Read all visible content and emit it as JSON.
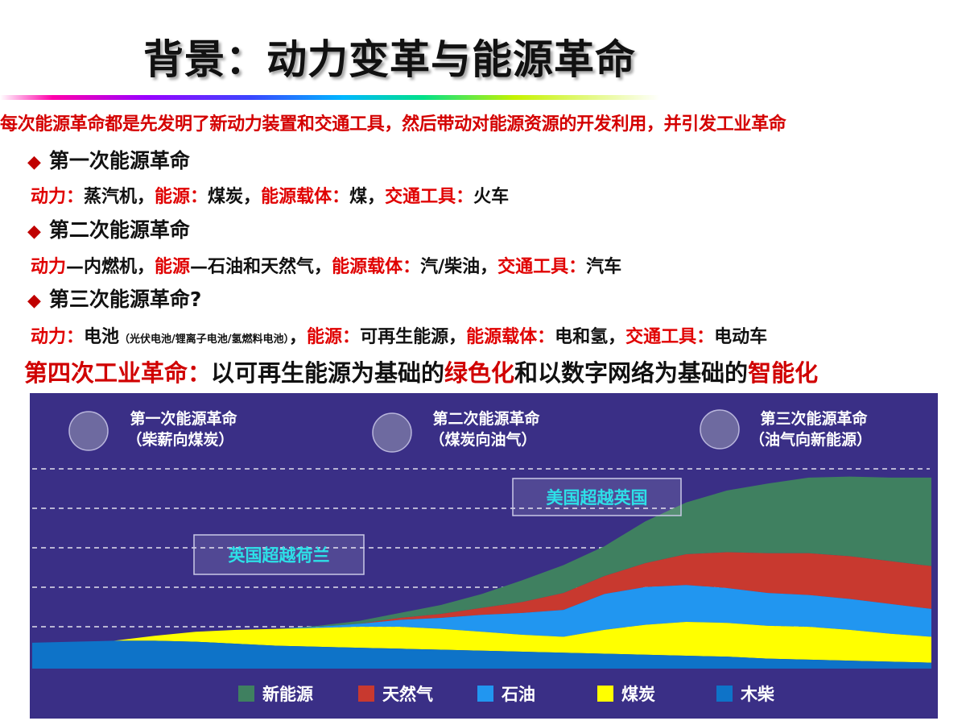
{
  "title": "背景：动力变革与能源革命",
  "intro": "每次能源革命都是先发明了新动力装置和交通工具，然后带动对能源资源的开发利用，并引发工业革命",
  "revolutions": [
    {
      "heading": "第一次能源革命",
      "detail": [
        {
          "text": "动力：",
          "red": true
        },
        {
          "text": "蒸汽机，",
          "red": false
        },
        {
          "text": "能源：",
          "red": true
        },
        {
          "text": "煤炭，",
          "red": false
        },
        {
          "text": "能源载体：",
          "red": true
        },
        {
          "text": "煤，",
          "red": false
        },
        {
          "text": "交通工具：",
          "red": true
        },
        {
          "text": "火车",
          "red": false
        }
      ]
    },
    {
      "heading": "第二次能源革命",
      "detail": [
        {
          "text": "动力",
          "red": true
        },
        {
          "text": "—内燃机，",
          "red": false
        },
        {
          "text": "能源",
          "red": true
        },
        {
          "text": "—石油和天然气，",
          "red": false
        },
        {
          "text": "能源载体：",
          "red": true
        },
        {
          "text": "汽/柴油，",
          "red": false
        },
        {
          "text": "交通工具：",
          "red": true
        },
        {
          "text": "汽车",
          "red": false
        }
      ]
    },
    {
      "heading": "第三次能源革命?",
      "detail": [
        {
          "text": "动力：",
          "red": true
        },
        {
          "text": "电池",
          "red": false
        },
        {
          "text": "（光伏电池/锂离子电池/氢燃料电池）",
          "red": false,
          "small": true
        },
        {
          "text": "，",
          "red": false
        },
        {
          "text": "能源：",
          "red": true
        },
        {
          "text": "可再生能源，",
          "red": false
        },
        {
          "text": "能源载体：",
          "red": true
        },
        {
          "text": "电和氢，",
          "red": false
        },
        {
          "text": "交通工具：",
          "red": true
        },
        {
          "text": "电动车",
          "red": false
        }
      ]
    }
  ],
  "fourth": [
    {
      "text": "第四次工业革命：",
      "red": true
    },
    {
      "text": "以可再生能源为基础的",
      "red": false
    },
    {
      "text": "绿色化",
      "red": true
    },
    {
      "text": "和以数字网络为基础的",
      "red": false
    },
    {
      "text": "智能化",
      "red": true
    }
  ],
  "chart_data": {
    "type": "area",
    "stacked": true,
    "grid": "dashed horizontal",
    "legend_position": "bottom",
    "phases": [
      {
        "title": "第一次能源革命",
        "subtitle": "（柴薪向煤炭）"
      },
      {
        "title": "第二次能源革命",
        "subtitle": "（煤炭向油气）"
      },
      {
        "title": "第三次能源革命",
        "subtitle": "（油气向新能源）"
      }
    ],
    "annotations": [
      "英国超越荷兰",
      "美国超越英国"
    ],
    "x": [
      0,
      1,
      2,
      3,
      4,
      5,
      6,
      7,
      8,
      9,
      10,
      11,
      12,
      13,
      14,
      15,
      16,
      17,
      18,
      19,
      20,
      21,
      22
    ],
    "series": [
      {
        "name": "木柴",
        "color": "#0e73c8",
        "values": [
          26,
          27,
          28,
          28,
          27,
          25,
          23,
          22,
          21,
          20,
          19,
          18,
          17,
          16,
          15,
          14,
          13,
          12,
          10,
          9,
          8,
          7,
          6
        ]
      },
      {
        "name": "煤炭",
        "color": "#ffff00",
        "values": [
          0,
          0,
          0,
          5,
          10,
          14,
          17,
          19,
          21,
          22,
          21,
          19,
          17,
          16,
          24,
          30,
          34,
          34,
          33,
          33,
          31,
          28,
          26
        ]
      },
      {
        "name": "石油",
        "color": "#2196f0",
        "values": [
          0,
          0,
          0,
          0,
          0,
          0,
          0,
          1,
          3,
          7,
          11,
          17,
          22,
          27,
          36,
          38,
          37,
          35,
          33,
          32,
          31,
          30,
          28
        ]
      },
      {
        "name": "天然气",
        "color": "#c8392f",
        "values": [
          0,
          0,
          0,
          0,
          0,
          0,
          0,
          0,
          0,
          2,
          4,
          7,
          11,
          17,
          18,
          24,
          31,
          36,
          40,
          42,
          43,
          43,
          43
        ]
      },
      {
        "name": "新能源",
        "color": "#3f8060",
        "values": [
          0,
          0,
          0,
          0,
          0,
          0,
          0,
          1,
          3,
          5,
          9,
          14,
          22,
          28,
          30,
          42,
          52,
          62,
          70,
          76,
          80,
          84,
          89
        ]
      }
    ]
  }
}
